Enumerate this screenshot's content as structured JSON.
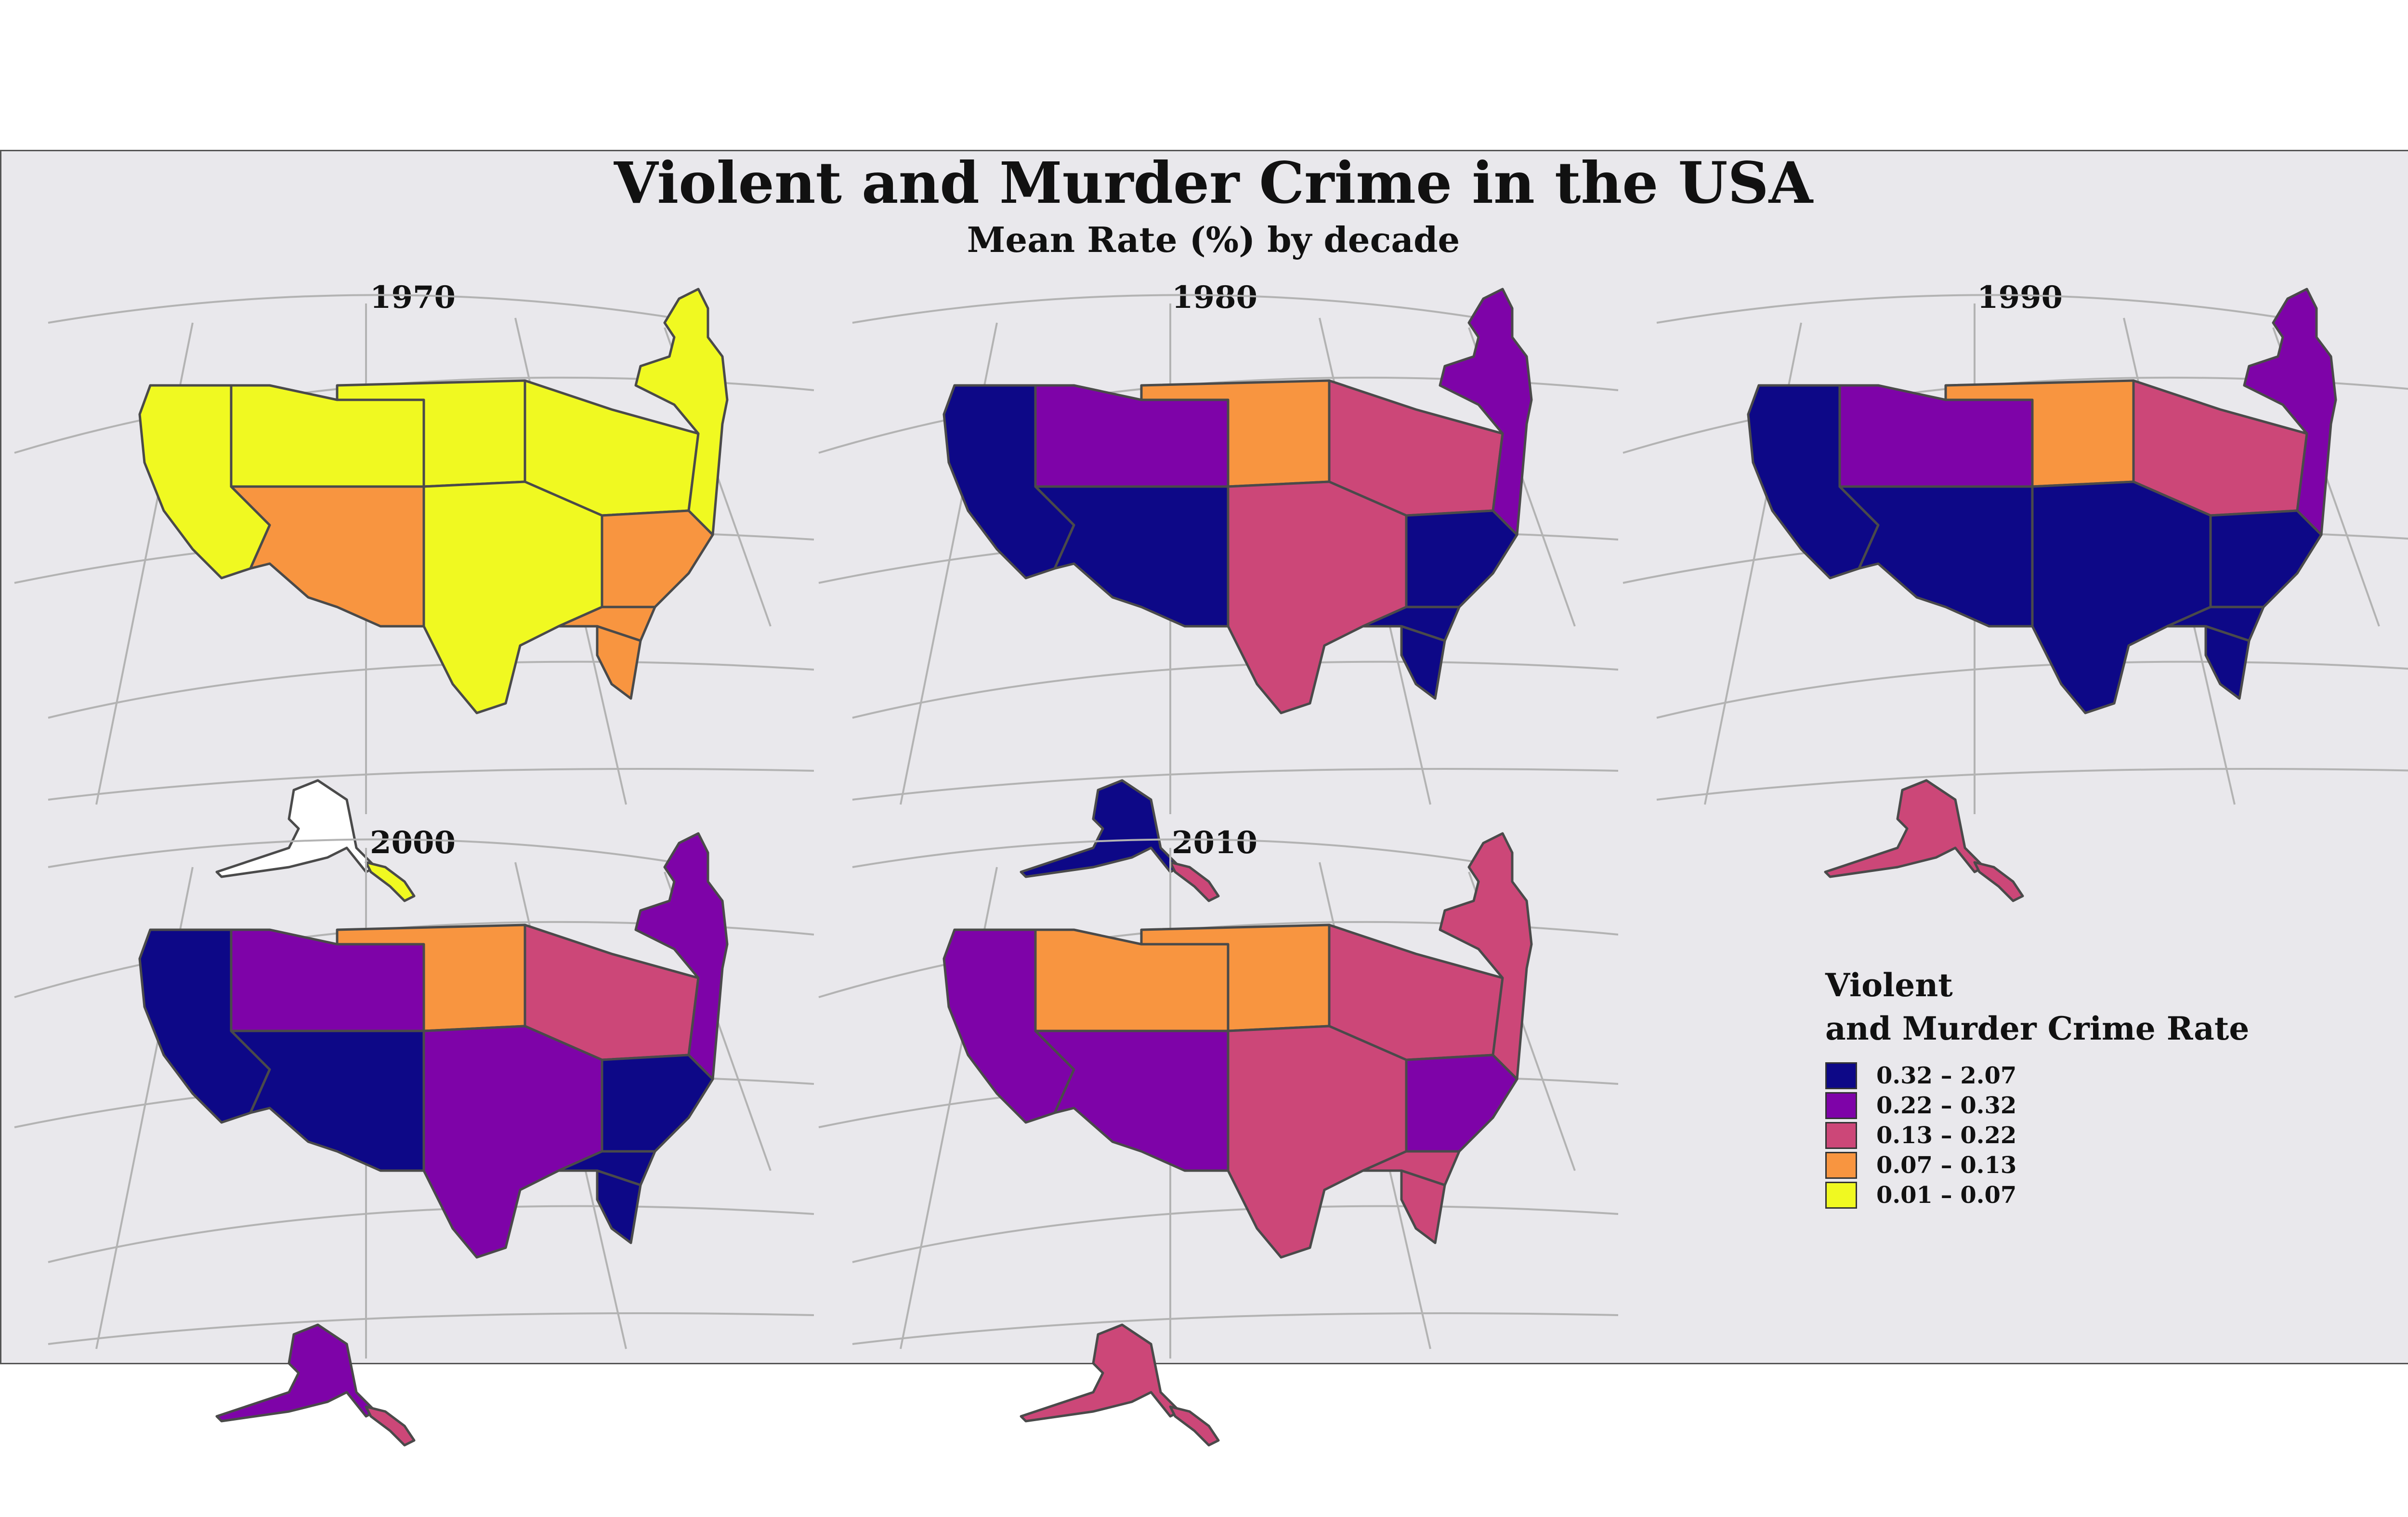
{
  "title": "Violent and Murder Crime in the USA",
  "subtitle": "Mean Rate (%) by decade",
  "legend": {
    "title_line1": "Violent",
    "title_line2": "and Murder Crime Rate",
    "classes": [
      {
        "label": "0.32 – 2.07",
        "color": "#0d0887"
      },
      {
        "label": "0.22 – 0.32",
        "color": "#7e03a8"
      },
      {
        "label": "0.13 – 0.22",
        "color": "#cc4778"
      },
      {
        "label": "0.07 – 0.13",
        "color": "#f89540"
      },
      {
        "label": "0.01 – 0.07",
        "color": "#f0f921"
      }
    ]
  },
  "panels": [
    {
      "year": "1970",
      "classes": {
        "west": 4,
        "southwest": 3,
        "mountain": 4,
        "plains": 4,
        "midwest": 4,
        "south": 4,
        "southeast": 3,
        "florida": 3,
        "northeast": 4,
        "alaska": null,
        "hawaii": 4
      }
    },
    {
      "year": "1980",
      "classes": {
        "west": 0,
        "southwest": 0,
        "mountain": 1,
        "plains": 3,
        "midwest": 2,
        "south": 2,
        "southeast": 0,
        "florida": 0,
        "northeast": 1,
        "alaska": 0,
        "hawaii": 2
      }
    },
    {
      "year": "1990",
      "classes": {
        "west": 0,
        "southwest": 0,
        "mountain": 1,
        "plains": 3,
        "midwest": 2,
        "south": 0,
        "southeast": 0,
        "florida": 0,
        "northeast": 1,
        "alaska": 2,
        "hawaii": 2
      }
    },
    {
      "year": "2000",
      "classes": {
        "west": 0,
        "southwest": 0,
        "mountain": 1,
        "plains": 3,
        "midwest": 2,
        "south": 1,
        "southeast": 0,
        "florida": 0,
        "northeast": 1,
        "alaska": 1,
        "hawaii": 2
      }
    },
    {
      "year": "2010",
      "classes": {
        "west": 1,
        "southwest": 1,
        "mountain": 3,
        "plains": 3,
        "midwest": 2,
        "south": 2,
        "southeast": 1,
        "florida": 2,
        "northeast": 2,
        "alaska": 2,
        "hawaii": 2
      }
    }
  ]
}
